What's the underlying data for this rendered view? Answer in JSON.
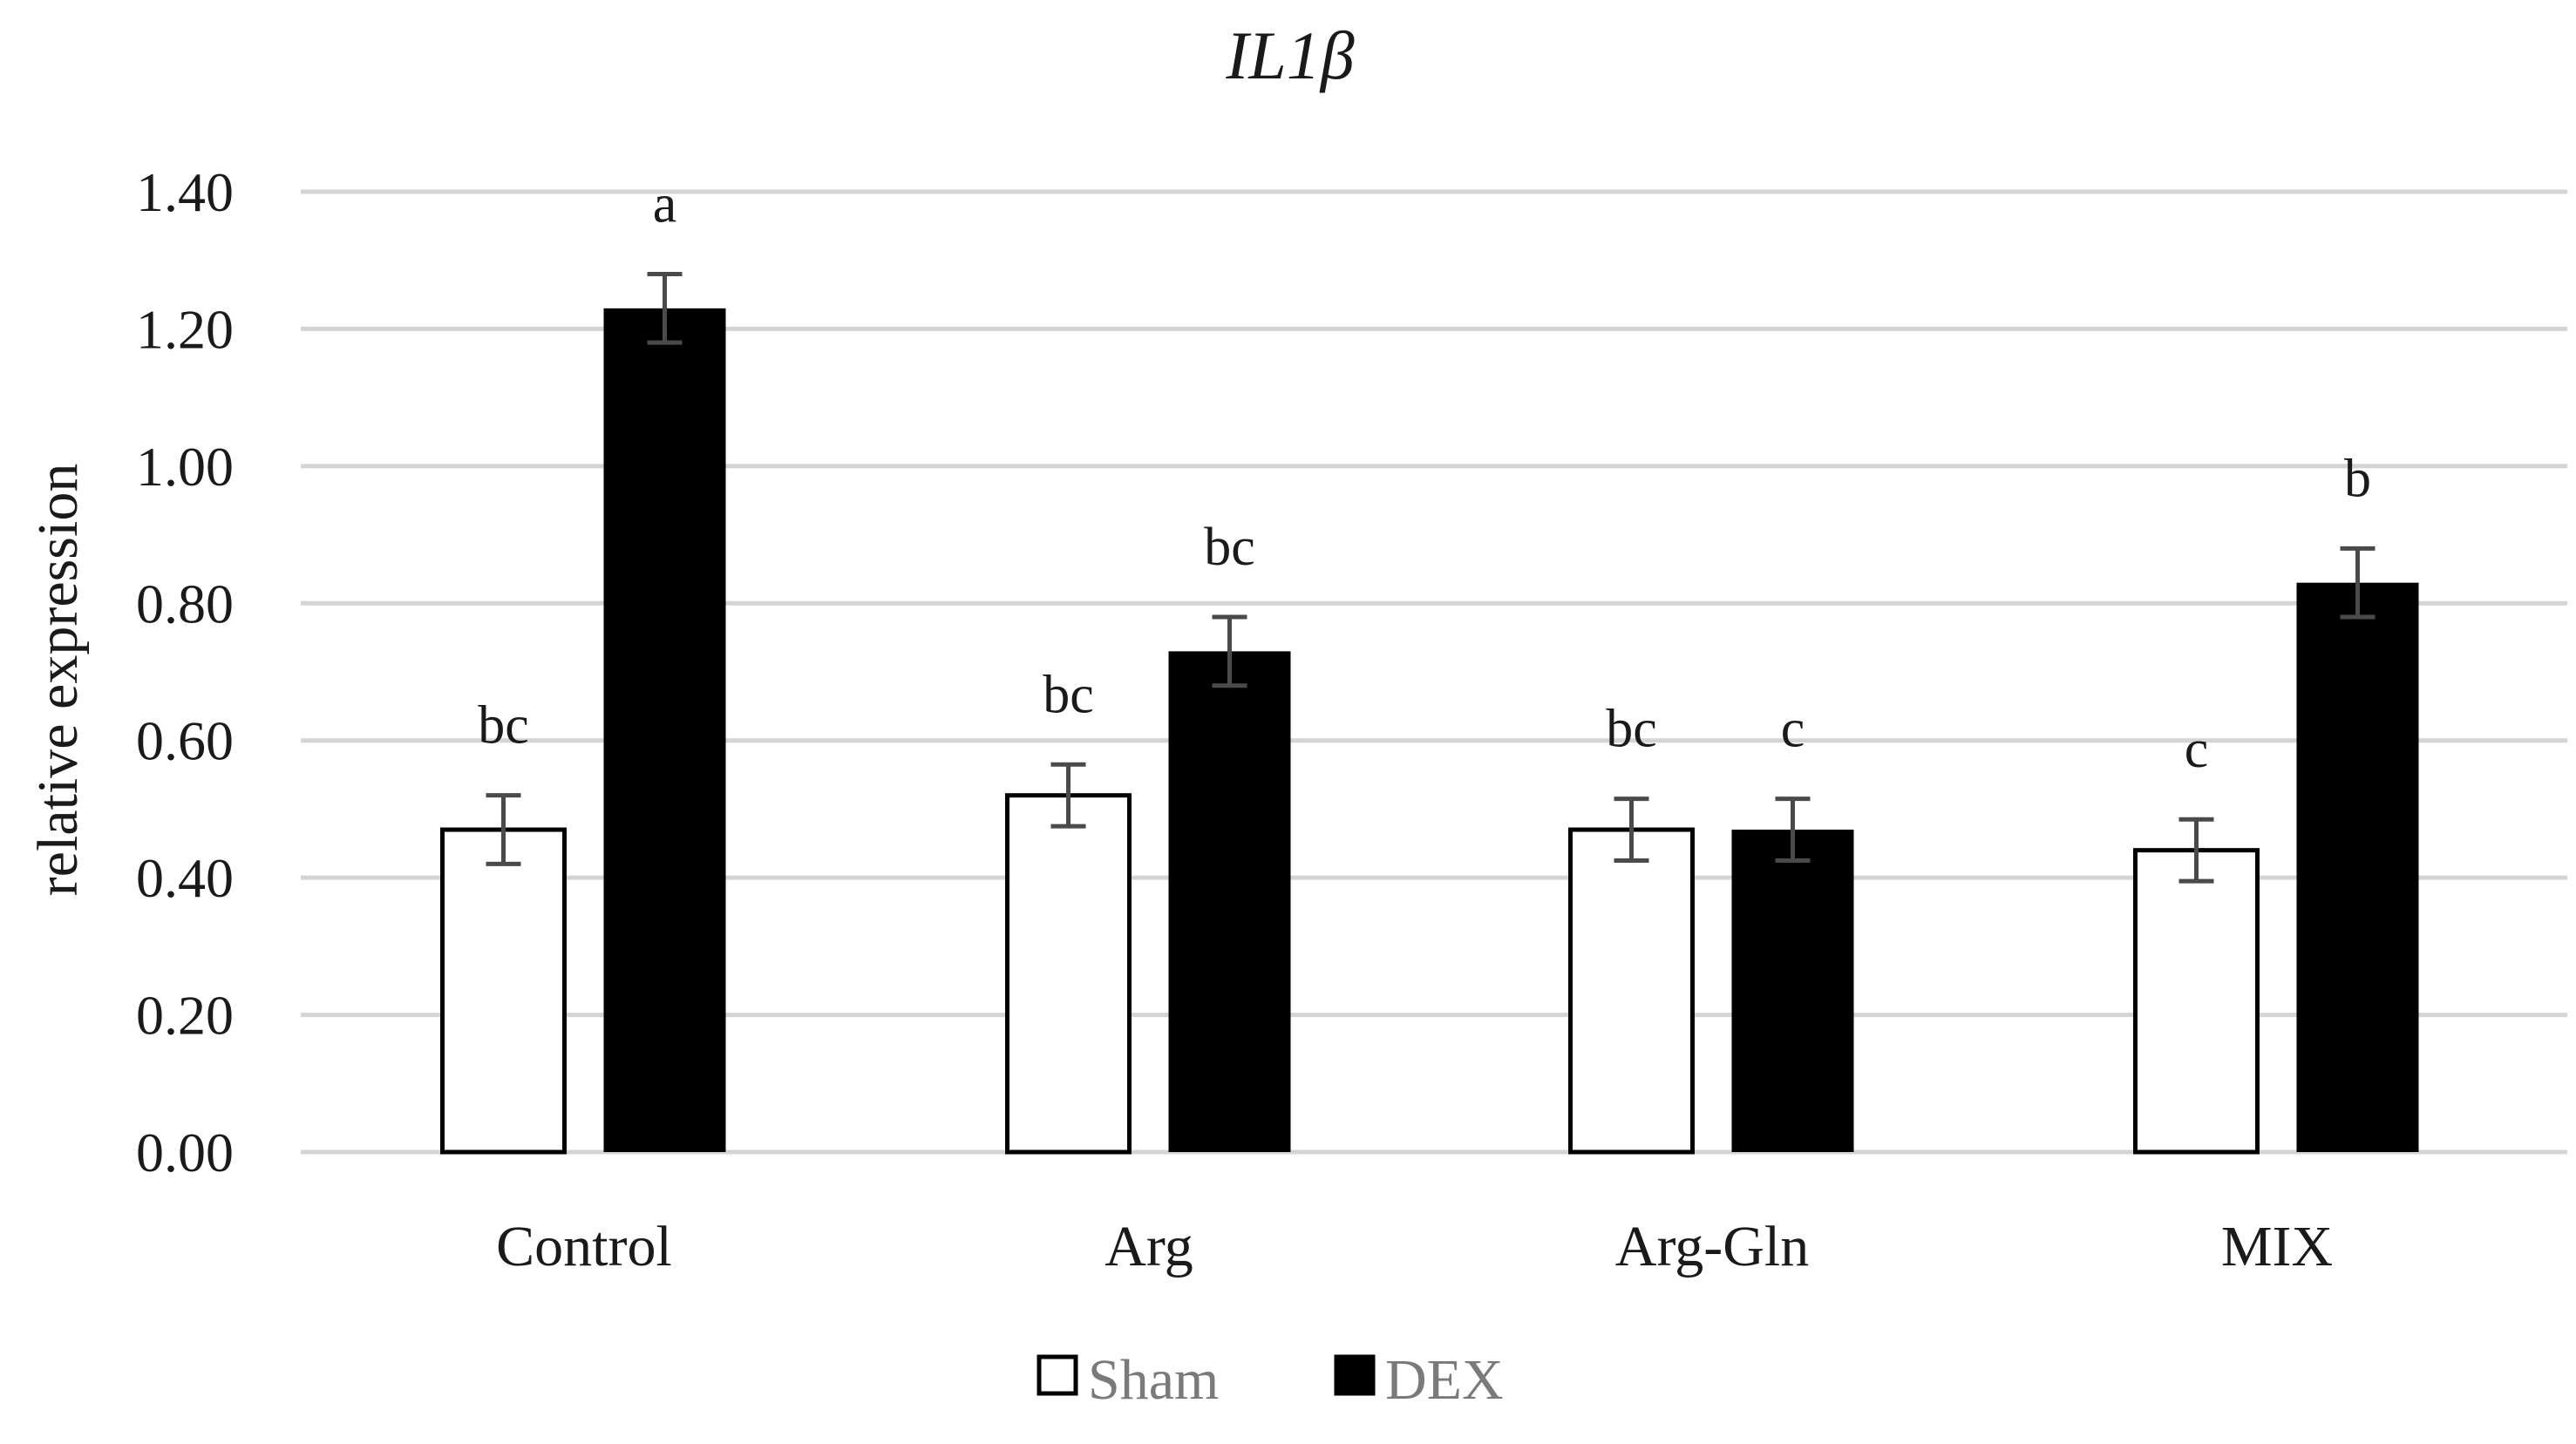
{
  "chart_data": {
    "type": "bar",
    "title": "IL1β",
    "xlabel": "",
    "ylabel": "relative expression",
    "ylim": [
      0,
      1.4
    ],
    "ytick_step": 0.2,
    "yticks": [
      "0.00",
      "0.20",
      "0.40",
      "0.60",
      "0.80",
      "1.00",
      "1.20",
      "1.40"
    ],
    "categories": [
      "Control",
      "Arg",
      "Arg-Gln",
      "MIX"
    ],
    "grid": true,
    "legend_position": "bottom",
    "series": [
      {
        "name": "Sham",
        "fill": "#ffffff",
        "stroke": "#000000",
        "values": [
          0.47,
          0.52,
          0.47,
          0.44
        ],
        "errors": [
          0.05,
          0.045,
          0.045,
          0.045
        ],
        "significance": [
          "bc",
          "bc",
          "bc",
          "c"
        ]
      },
      {
        "name": "DEX",
        "fill": "#000000",
        "stroke": "#000000",
        "values": [
          1.23,
          0.73,
          0.47,
          0.83
        ],
        "errors": [
          0.05,
          0.05,
          0.045,
          0.05
        ],
        "significance": [
          "a",
          "bc",
          "c",
          "b"
        ]
      }
    ]
  }
}
